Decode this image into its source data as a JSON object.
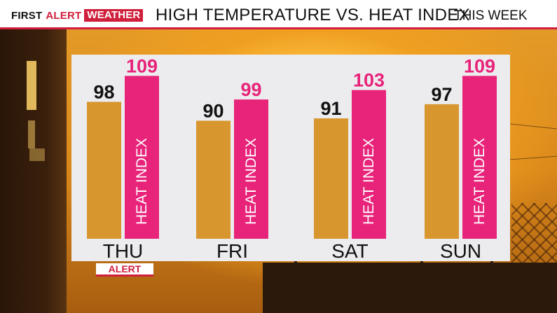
{
  "header": {
    "logo_part1": "FIRST",
    "logo_part2": "ALERT",
    "logo_part3": "WEATHER",
    "title": "HIGH TEMPERATURE VS. HEAT INDEX",
    "subtitle": "THIS WEEK"
  },
  "alert_badge": "ALERT",
  "colors": {
    "brand_red": "#d01f3c",
    "high_temp_bar": "#d8962f",
    "heat_index_bar": "#e8237a",
    "heat_index_label": "#e8237a"
  },
  "chart_data": {
    "type": "bar",
    "title": "HIGH TEMPERATURE VS. HEAT INDEX",
    "categories": [
      "THU",
      "FRI",
      "SAT",
      "SUN"
    ],
    "series": [
      {
        "values": [
          98,
          90,
          91,
          97
        ]
      },
      {
        "name": "HEAT INDEX",
        "values": [
          109,
          99,
          103,
          109
        ]
      }
    ],
    "ylim": [
      40,
      110
    ],
    "grid": false,
    "legend": "none"
  }
}
